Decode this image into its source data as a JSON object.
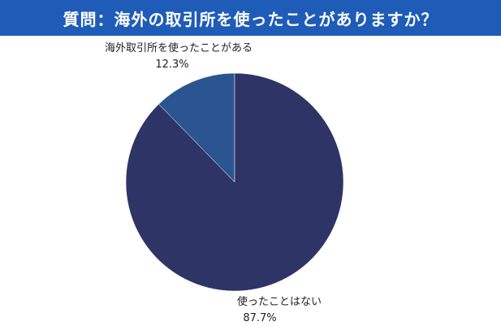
{
  "header": {
    "title": "質問：海外の取引所を使ったことがありますか？"
  },
  "colors": {
    "header_bg": "#1f5cb8",
    "header_text": "#ffffff"
  },
  "chart_data": {
    "type": "pie",
    "title": "質問：海外の取引所を使ったことがありますか？",
    "slices": [
      {
        "label": "海外取引所を使ったことがある",
        "value": 12.3,
        "value_label": "12.3%",
        "color": "#2b5591"
      },
      {
        "label": "使ったことはない",
        "value": 87.7,
        "value_label": "87.7%",
        "color": "#2f3466"
      }
    ],
    "start_angle": "12 o'clock",
    "direction": "counter-clockwise",
    "legend": "none"
  }
}
